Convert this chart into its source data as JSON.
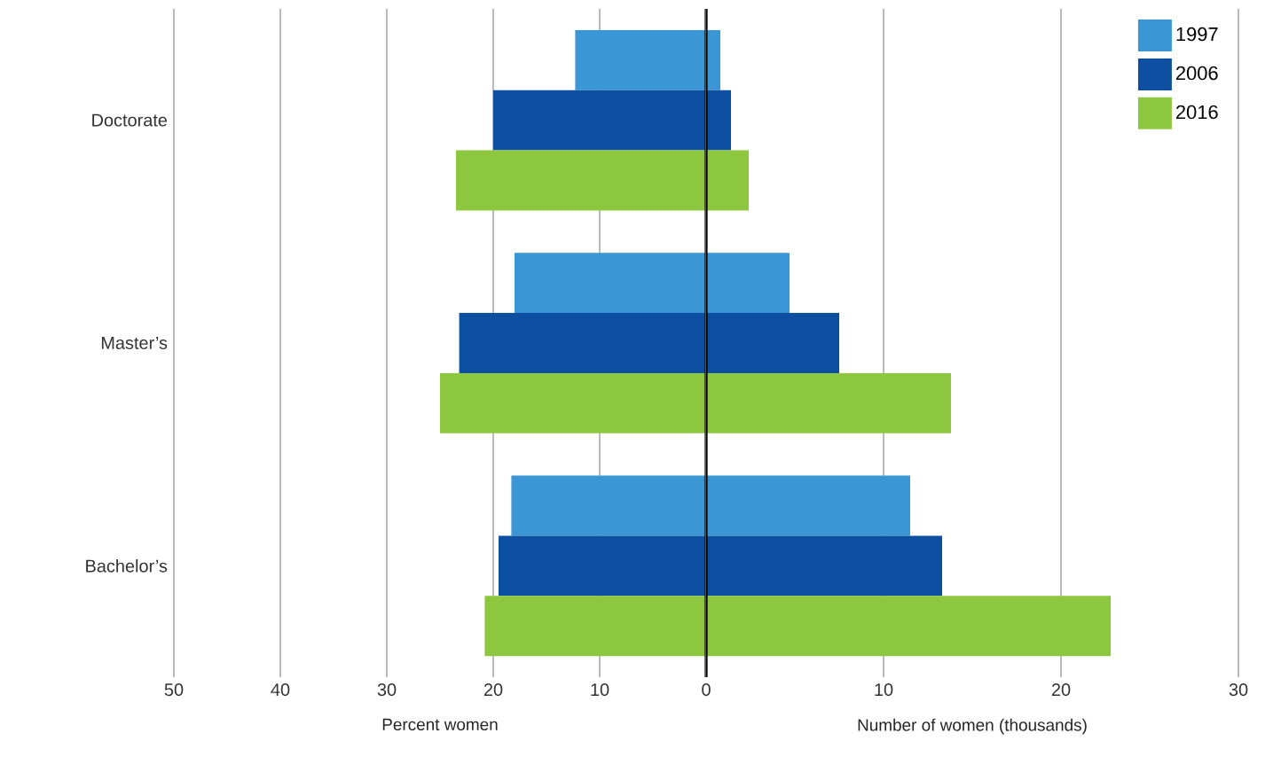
{
  "chart_data": [
    {
      "type": "bar",
      "orientation": "horizontal",
      "categories": [
        "Doctorate",
        "Master’s",
        "Bachelor’s"
      ],
      "xlabel": "Percent women",
      "xlim": [
        50,
        0
      ],
      "xticks": [
        50,
        40,
        30,
        20,
        10
      ],
      "grid": "x",
      "legend": false,
      "series": [
        {
          "color": "#3a96d4",
          "values": [
            12.3,
            18,
            18.3
          ]
        },
        {
          "color": "#0d4fa0",
          "values": [
            20,
            23.2,
            19.5
          ]
        },
        {
          "color": "#8dc63f",
          "values": [
            23.5,
            25,
            20.8
          ]
        }
      ]
    },
    {
      "type": "bar",
      "orientation": "horizontal",
      "categories": [
        null,
        null,
        null
      ],
      "xlabel": "Number of women (thousands)",
      "xlim": [
        0,
        30
      ],
      "xticks": [
        0,
        10,
        20,
        30
      ],
      "grid": "x",
      "legend": "top right",
      "tick_labels": "x",
      "series": [
        {
          "name": "1997",
          "color": "#3a96d4",
          "values": [
            0.8,
            4.7,
            11.5
          ]
        },
        {
          "name": "2006",
          "color": "#0d4fa0",
          "values": [
            1.4,
            7.5,
            13.3
          ]
        },
        {
          "name": "2016",
          "color": "#8dc63f",
          "values": [
            2.4,
            13.8,
            22.8
          ]
        }
      ]
    }
  ]
}
